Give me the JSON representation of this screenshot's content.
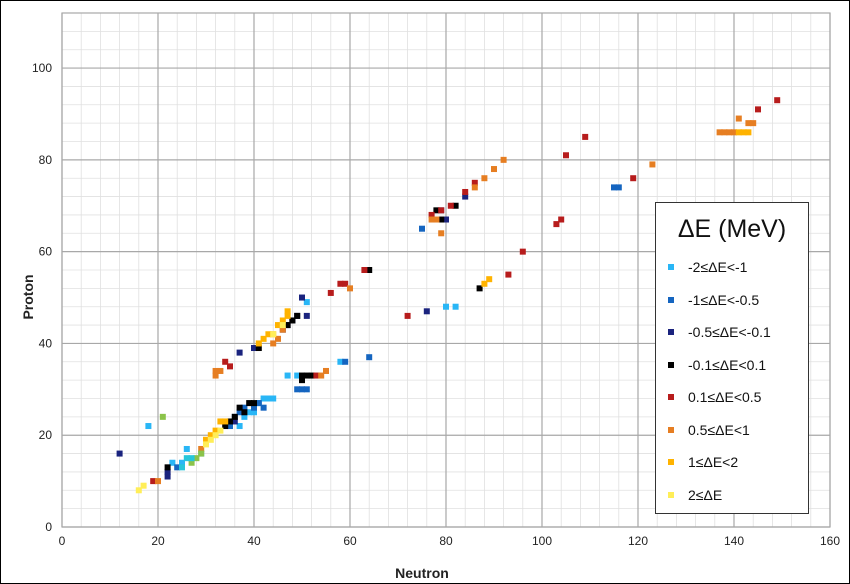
{
  "chart_data": {
    "type": "scatter",
    "title": "",
    "xlabel": "Neutron",
    "ylabel": "Proton",
    "xlim": [
      0,
      160
    ],
    "ylim": [
      0,
      112
    ],
    "xticks": [
      0,
      20,
      40,
      60,
      80,
      100,
      120,
      140,
      160
    ],
    "yticks": [
      0,
      20,
      40,
      60,
      80,
      100
    ],
    "grid": true,
    "legend": {
      "title": "ΔE (MeV)",
      "position": "right"
    },
    "series": [
      {
        "name": "-2≤ΔE<-1",
        "color": "#29b6f6",
        "points": [
          [
            18,
            22
          ],
          [
            23,
            14
          ],
          [
            25,
            14
          ],
          [
            26,
            17
          ],
          [
            29,
            16
          ],
          [
            37,
            22
          ],
          [
            38,
            24
          ],
          [
            39,
            25
          ],
          [
            40,
            25
          ],
          [
            41,
            27
          ],
          [
            42,
            28
          ],
          [
            43,
            28
          ],
          [
            44,
            28
          ],
          [
            47,
            33
          ],
          [
            49,
            33
          ],
          [
            51,
            49
          ],
          [
            58,
            36
          ],
          [
            80,
            48
          ],
          [
            82,
            48
          ]
        ]
      },
      {
        "name": "-1≤ΔE<-0.5",
        "color": "#1565c0",
        "points": [
          [
            24,
            13
          ],
          [
            35,
            22
          ],
          [
            36,
            24
          ],
          [
            37,
            25
          ],
          [
            38,
            26
          ],
          [
            40,
            26
          ],
          [
            41,
            27
          ],
          [
            42,
            26
          ],
          [
            49,
            30
          ],
          [
            50,
            30
          ],
          [
            51,
            30
          ],
          [
            59,
            36
          ],
          [
            64,
            37
          ],
          [
            75,
            65
          ],
          [
            115,
            74
          ],
          [
            116,
            74
          ]
        ]
      },
      {
        "name": "-0.5≤ΔE<-0.1",
        "color": "#1a237e",
        "points": [
          [
            12,
            16
          ],
          [
            22,
            11
          ],
          [
            22,
            12
          ],
          [
            36,
            23
          ],
          [
            37,
            38
          ],
          [
            40,
            39
          ],
          [
            46,
            43
          ],
          [
            47,
            44
          ],
          [
            48,
            45
          ],
          [
            49,
            46
          ],
          [
            50,
            50
          ],
          [
            51,
            46
          ],
          [
            76,
            47
          ],
          [
            79,
            69
          ],
          [
            80,
            67
          ],
          [
            84,
            72
          ]
        ]
      },
      {
        "name": "-0.1≤ΔE<0.1",
        "color": "#000000",
        "points": [
          [
            22,
            13
          ],
          [
            34,
            22
          ],
          [
            35,
            23
          ],
          [
            36,
            24
          ],
          [
            37,
            26
          ],
          [
            38,
            25
          ],
          [
            39,
            27
          ],
          [
            40,
            27
          ],
          [
            41,
            39
          ],
          [
            47,
            44
          ],
          [
            48,
            45
          ],
          [
            49,
            46
          ],
          [
            50,
            32
          ],
          [
            50,
            33
          ],
          [
            51,
            33
          ],
          [
            52,
            33
          ],
          [
            64,
            56
          ],
          [
            78,
            69
          ],
          [
            79,
            67
          ],
          [
            82,
            70
          ],
          [
            87,
            52
          ]
        ]
      },
      {
        "name": "0.1≤ΔE<0.5",
        "color": "#b71c1c",
        "points": [
          [
            19,
            10
          ],
          [
            34,
            36
          ],
          [
            35,
            35
          ],
          [
            53,
            33
          ],
          [
            56,
            51
          ],
          [
            58,
            53
          ],
          [
            59,
            53
          ],
          [
            63,
            56
          ],
          [
            72,
            46
          ],
          [
            77,
            68
          ],
          [
            79,
            69
          ],
          [
            81,
            70
          ],
          [
            84,
            73
          ],
          [
            86,
            75
          ],
          [
            93,
            55
          ],
          [
            96,
            60
          ],
          [
            103,
            66
          ],
          [
            104,
            67
          ],
          [
            105,
            81
          ],
          [
            109,
            85
          ],
          [
            119,
            76
          ],
          [
            145,
            91
          ],
          [
            149,
            93
          ]
        ]
      },
      {
        "name": "0.5≤ΔE<1",
        "color": "#e67e22",
        "points": [
          [
            20,
            10
          ],
          [
            29,
            17
          ],
          [
            32,
            33
          ],
          [
            32,
            34
          ],
          [
            33,
            34
          ],
          [
            44,
            40
          ],
          [
            45,
            41
          ],
          [
            46,
            43
          ],
          [
            54,
            33
          ],
          [
            55,
            34
          ],
          [
            60,
            52
          ],
          [
            77,
            67
          ],
          [
            78,
            67
          ],
          [
            79,
            64
          ],
          [
            86,
            74
          ],
          [
            88,
            76
          ],
          [
            90,
            78
          ],
          [
            92,
            80
          ],
          [
            123,
            79
          ],
          [
            137,
            86
          ],
          [
            138,
            86
          ],
          [
            139,
            86
          ],
          [
            140,
            86
          ],
          [
            141,
            89
          ],
          [
            143,
            88
          ],
          [
            144,
            88
          ]
        ]
      },
      {
        "name": "1≤ΔE<2",
        "color": "#ffb300",
        "points": [
          [
            30,
            19
          ],
          [
            31,
            20
          ],
          [
            32,
            21
          ],
          [
            33,
            23
          ],
          [
            34,
            23
          ],
          [
            41,
            40
          ],
          [
            42,
            41
          ],
          [
            43,
            42
          ],
          [
            44,
            42
          ],
          [
            45,
            44
          ],
          [
            46,
            45
          ],
          [
            47,
            46
          ],
          [
            47,
            47
          ],
          [
            88,
            53
          ],
          [
            89,
            54
          ],
          [
            142,
            86
          ],
          [
            143,
            86
          ],
          [
            141,
            86
          ]
        ]
      },
      {
        "name": "2≤ΔE",
        "color": "#ffee58",
        "points": [
          [
            16,
            8
          ],
          [
            17,
            9
          ],
          [
            30,
            18
          ],
          [
            31,
            19
          ],
          [
            32,
            20
          ],
          [
            33,
            21
          ],
          [
            44,
            42
          ],
          [
            46,
            44
          ]
        ]
      },
      {
        "name": "",
        "color": "#8bc34a",
        "points": [
          [
            21,
            24
          ],
          [
            27,
            14
          ],
          [
            28,
            15
          ],
          [
            29,
            16
          ]
        ]
      },
      {
        "name": "",
        "color": "#26c6da",
        "points": [
          [
            25,
            13
          ],
          [
            26,
            15
          ],
          [
            27,
            15
          ]
        ]
      }
    ]
  }
}
